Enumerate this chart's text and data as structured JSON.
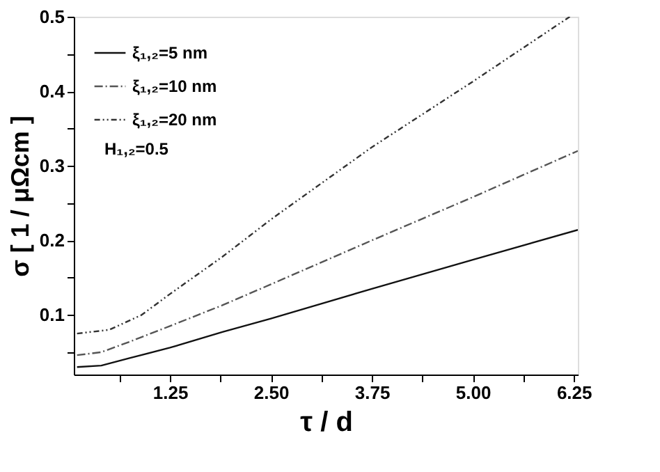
{
  "chart_data": {
    "type": "line",
    "xlabel": "τ / d",
    "ylabel": "σ [ 1 / μΩcm ]",
    "xlim": [
      0.06,
      6.3
    ],
    "ylim": [
      0.02,
      0.5
    ],
    "xticks": [
      {
        "value": 0.625,
        "label": null
      },
      1.25,
      {
        "value": 1.875,
        "label": null
      },
      {
        "value": 2.5,
        "label": "2.50"
      },
      {
        "value": 3.125,
        "label": null
      },
      3.75,
      {
        "value": 4.375,
        "label": null
      },
      {
        "value": 5.0,
        "label": "5.00"
      },
      {
        "value": 5.625,
        "label": null
      },
      6.25
    ],
    "yticks": [
      {
        "value": 0.05,
        "label": null
      },
      0.1,
      {
        "value": 0.15,
        "label": null
      },
      0.2,
      {
        "value": 0.25,
        "label": null
      },
      0.3,
      {
        "value": 0.35,
        "label": null
      },
      0.4,
      {
        "value": 0.45,
        "label": null
      },
      0.5
    ],
    "grid": false,
    "legend": "top left",
    "marker": "none",
    "series": [
      {
        "name": "ξ₁,₂=5 nm",
        "color": "#111111",
        "line_style": "solid",
        "x": [
          0.1,
          0.4,
          0.75,
          1.25,
          1.9,
          2.5,
          3.75,
          5.0,
          6.3
        ],
        "values": [
          0.03,
          0.032,
          0.042,
          0.056,
          0.077,
          0.095,
          0.135,
          0.174,
          0.214
        ]
      },
      {
        "name": "ξ₁,₂=10 nm",
        "color": "#555555",
        "line_style": "dashed",
        "x": [
          0.1,
          0.4,
          0.75,
          1.25,
          1.9,
          2.5,
          3.75,
          5.0,
          6.3
        ],
        "values": [
          0.046,
          0.05,
          0.064,
          0.085,
          0.113,
          0.141,
          0.2,
          0.258,
          0.32
        ]
      },
      {
        "name": "ξ₁,₂=20 nm",
        "color": "#333333",
        "line_style": "dotted",
        "x": [
          0.1,
          0.5,
          0.9,
          1.25,
          1.9,
          2.5,
          3.75,
          5.0,
          6.2
        ],
        "values": [
          0.075,
          0.08,
          0.1,
          0.128,
          0.178,
          0.228,
          0.325,
          0.413,
          0.5
        ]
      }
    ],
    "annotations": [
      "H₁,₂=0.5"
    ]
  }
}
